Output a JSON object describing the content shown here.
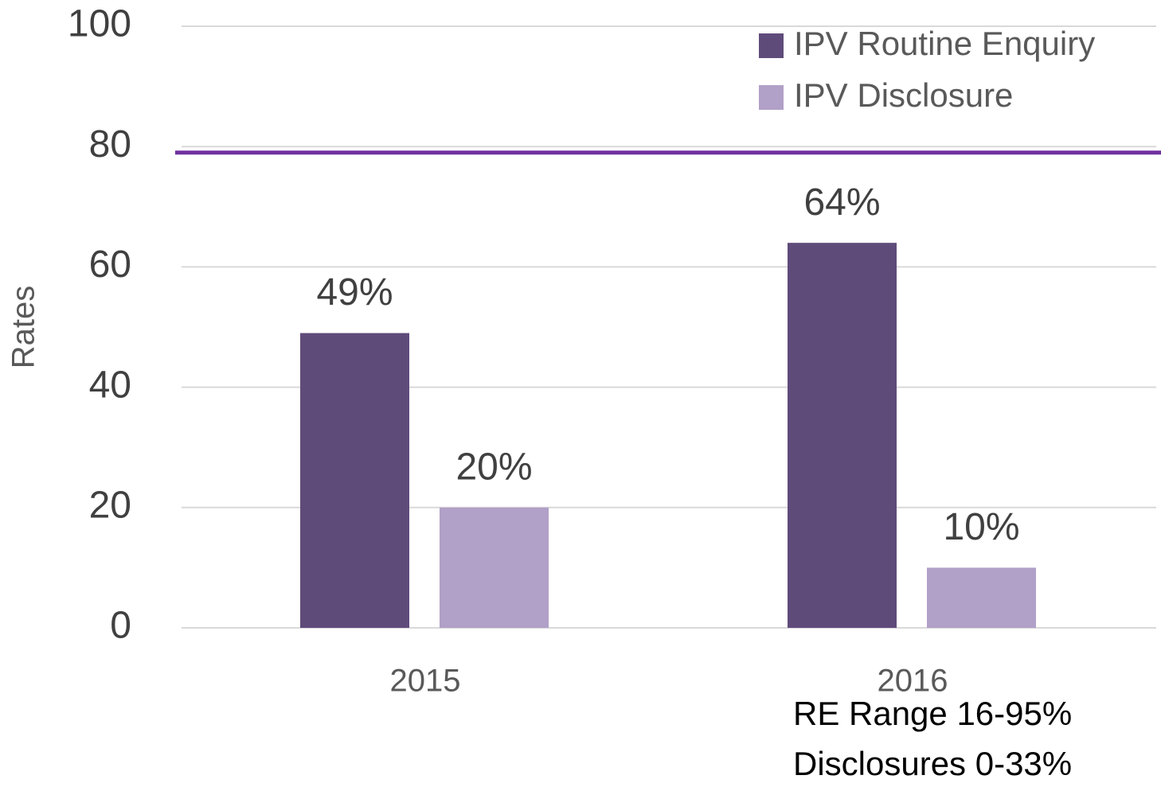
{
  "chart_data": {
    "type": "bar",
    "y_label": "Rates",
    "categories": [
      "2015",
      "2016"
    ],
    "series": [
      {
        "name": "IPV Routine Enquiry",
        "color": "#5f4b7a",
        "values": [
          49,
          64
        ],
        "value_labels": [
          "49%",
          "64%"
        ]
      },
      {
        "name": "IPV Disclosure",
        "color": "#b1a0c7",
        "values": [
          20,
          10
        ],
        "value_labels": [
          "20%",
          "10%"
        ]
      }
    ],
    "ylim": [
      0,
      100
    ],
    "yticks": [
      0,
      20,
      40,
      60,
      80,
      100
    ],
    "grid": true,
    "legend": "top-right",
    "reference_line": {
      "value": 79,
      "color": "#7030a0"
    },
    "annotations": [
      "RE Range 16-95%",
      "Disclosures 0-33%"
    ]
  }
}
